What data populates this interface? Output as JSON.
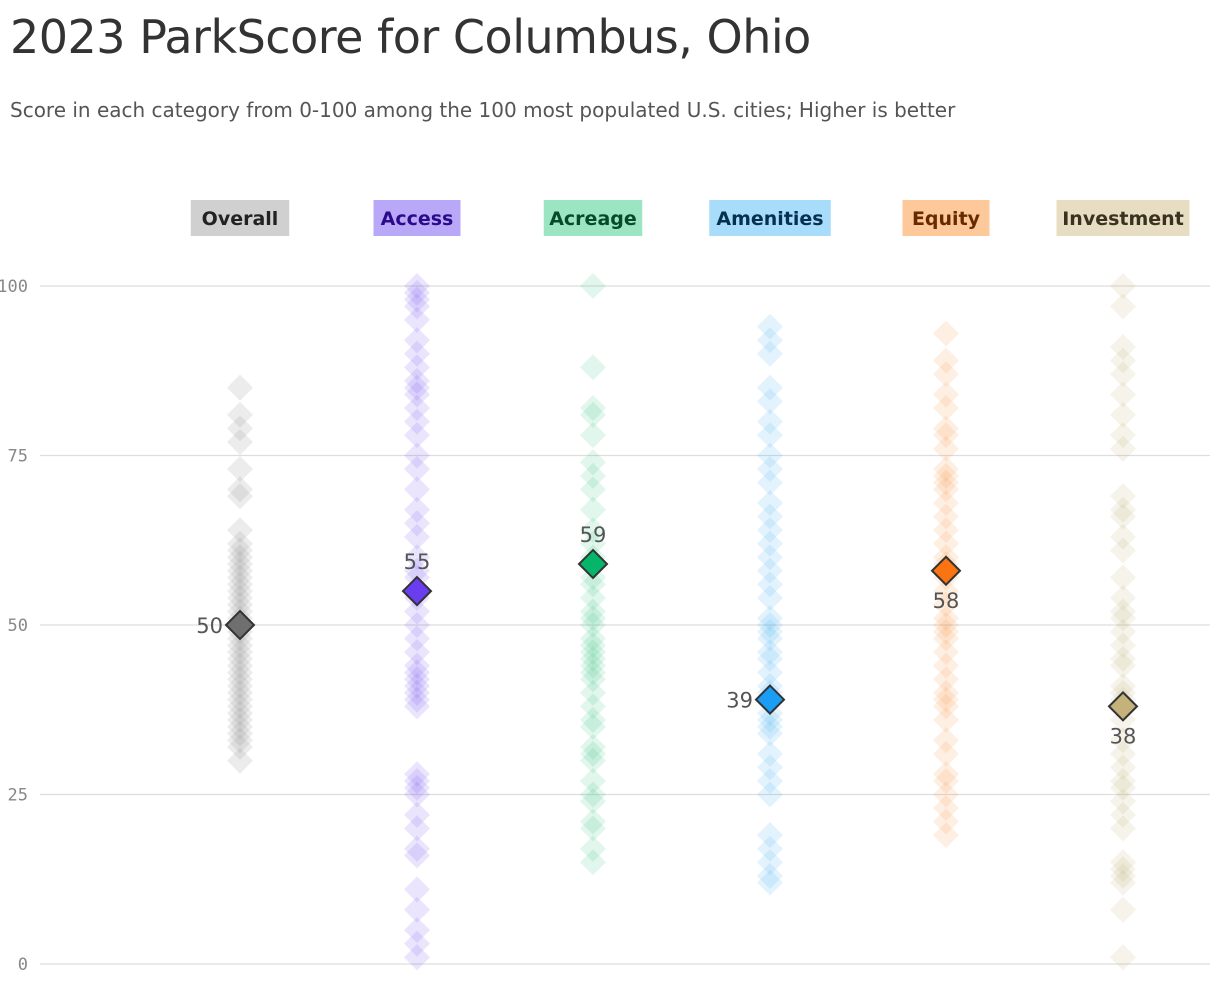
{
  "title": "2023 ParkScore for Columbus, Ohio",
  "subtitle": "Score in each category from 0-100 among the 100 most populated U.S. cities; Higher is better",
  "chart_data": {
    "type": "scatter",
    "ylim": [
      0,
      100
    ],
    "y_ticks": [
      "0",
      "25",
      "50",
      "75",
      "100"
    ],
    "grid": true,
    "highlight_marker": "diamond",
    "categories": [
      {
        "name": "Overall",
        "label_bg": "#d0d0d0",
        "label_color": "#222222",
        "color": "#8a8a8a",
        "highlight_color": "#6f6f6f",
        "highlight_value": 50,
        "label_side": "left",
        "values": [
          85,
          81,
          79,
          77,
          73,
          70,
          69,
          64,
          62,
          61,
          60,
          59,
          58,
          57,
          56,
          55,
          54,
          53,
          52,
          51,
          50,
          49,
          48,
          47,
          46,
          45,
          44,
          43,
          42,
          41,
          40,
          39,
          38,
          37,
          36,
          35,
          34,
          33,
          32,
          30
        ]
      },
      {
        "name": "Access",
        "label_bg": "#b8a8f7",
        "label_color": "#2a0a8a",
        "color": "#7b5ff0",
        "highlight_color": "#6a3ef0",
        "highlight_value": 55,
        "label_side": "top",
        "values": [
          100,
          99,
          98,
          97,
          95,
          92,
          90,
          88,
          86,
          85,
          84,
          82,
          80,
          78,
          75,
          73,
          70,
          67,
          65,
          63,
          60,
          58,
          57,
          54,
          52,
          50,
          48,
          46,
          44,
          43,
          42,
          41,
          40,
          39,
          38,
          28,
          27,
          26,
          25,
          22,
          20,
          17,
          16,
          11,
          8,
          5,
          3,
          1
        ]
      },
      {
        "name": "Acreage",
        "label_bg": "#9be5c3",
        "label_color": "#064a2a",
        "color": "#42c98a",
        "highlight_color": "#05b56a",
        "highlight_value": 59,
        "label_side": "top",
        "values": [
          100,
          88,
          82,
          81,
          78,
          74,
          72,
          70,
          67,
          64,
          62,
          60,
          57,
          56,
          54,
          52,
          51,
          50,
          48,
          47,
          46,
          45,
          44,
          43,
          42,
          40,
          38,
          36,
          35,
          32,
          31,
          30,
          27,
          25,
          24,
          21,
          20,
          17,
          15
        ]
      },
      {
        "name": "Amenities",
        "label_bg": "#a8dcfb",
        "label_color": "#06304f",
        "color": "#4fb3f5",
        "highlight_color": "#1a9ef5",
        "highlight_value": 39,
        "label_side": "left",
        "values": [
          94,
          92,
          90,
          85,
          83,
          80,
          78,
          75,
          73,
          71,
          68,
          66,
          64,
          62,
          60,
          58,
          56,
          54,
          51,
          50,
          49,
          48,
          46,
          45,
          43,
          41,
          40,
          37,
          36,
          35,
          34,
          31,
          29,
          27,
          25,
          19,
          17,
          15,
          13,
          12
        ]
      },
      {
        "name": "Equity",
        "label_bg": "#fdc99b",
        "label_color": "#6a2a00",
        "color": "#fb9a52",
        "highlight_color": "#fc7412",
        "highlight_value": 58,
        "label_side": "bottom",
        "values": [
          93,
          89,
          87,
          84,
          82,
          79,
          78,
          76,
          73,
          72,
          71,
          70,
          68,
          66,
          64,
          62,
          60,
          59,
          57,
          55,
          53,
          51,
          50,
          49,
          48,
          46,
          44,
          42,
          40,
          39,
          38,
          36,
          33,
          31,
          28,
          27,
          25,
          23,
          21,
          19
        ]
      },
      {
        "name": "Investment",
        "label_bg": "#e6ddc2",
        "label_color": "#3a3220",
        "color": "#c2b27c",
        "highlight_color": "#c4b27a",
        "highlight_value": 38,
        "label_side": "bottom",
        "values": [
          100,
          97,
          91,
          89,
          87,
          84,
          81,
          78,
          76,
          69,
          67,
          66,
          63,
          61,
          57,
          54,
          52,
          51,
          49,
          47,
          45,
          44,
          41,
          40,
          39,
          36,
          33,
          31,
          29,
          27,
          26,
          24,
          22,
          20,
          15,
          14,
          13,
          12,
          8,
          1
        ]
      }
    ]
  }
}
